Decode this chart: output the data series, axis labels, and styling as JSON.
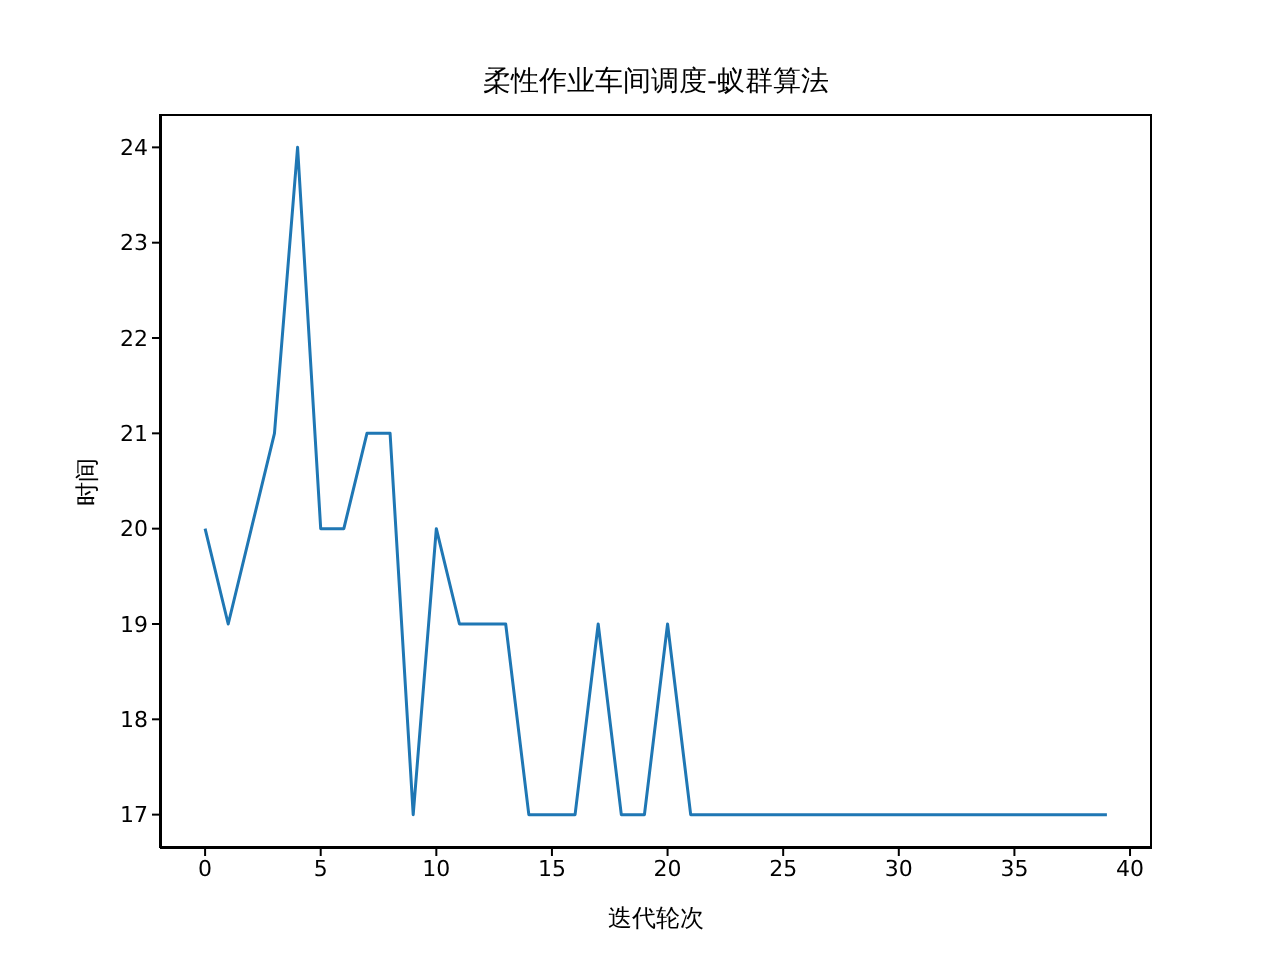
{
  "chart_data": {
    "type": "line",
    "title": "柔性作业车间调度-蚁群算法",
    "xlabel": "迭代轮次",
    "ylabel": "时间",
    "x": [
      0,
      1,
      2,
      3,
      4,
      5,
      6,
      7,
      8,
      9,
      10,
      11,
      12,
      13,
      14,
      15,
      16,
      17,
      18,
      19,
      20,
      21,
      22,
      23,
      24,
      25,
      26,
      27,
      28,
      29,
      30,
      31,
      32,
      33,
      34,
      35,
      36,
      37,
      38,
      39
    ],
    "series": [
      {
        "color": "#1f77b4",
        "values": [
          20,
          19,
          20,
          21,
          24,
          20,
          20,
          21,
          21,
          17,
          20,
          19,
          19,
          19,
          17,
          17,
          17,
          19,
          17,
          17,
          19,
          17,
          17,
          17,
          17,
          17,
          17,
          17,
          17,
          17,
          17,
          17,
          17,
          17,
          17,
          17,
          17,
          17,
          17,
          17
        ]
      }
    ],
    "xlim": [
      -1.95,
      40.95
    ],
    "xticks": [
      0,
      5,
      10,
      15,
      20,
      25,
      30,
      35,
      40
    ],
    "ylim": [
      16.65,
      24.35
    ],
    "yticks": [
      17,
      18,
      19,
      20,
      21,
      22,
      23,
      24
    ],
    "grid": false,
    "legend": false,
    "marker": "none",
    "line_style": "solid"
  }
}
